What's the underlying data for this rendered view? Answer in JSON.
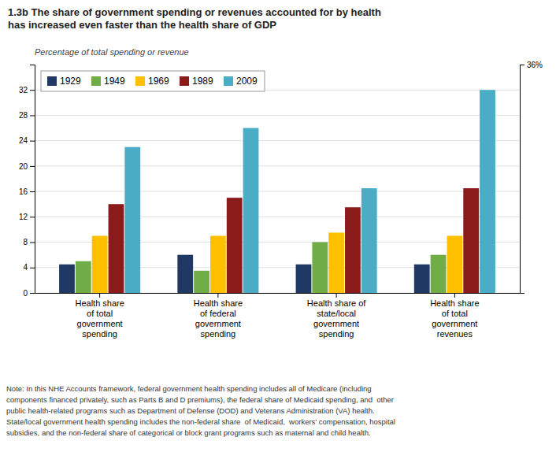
{
  "chart_data": {
    "type": "bar",
    "title": "1.3b The share of government spending or revenues accounted for by health\nhas increased even faster than the health share of GDP",
    "subtitle": "Percentage of total spending or revenue",
    "categories": [
      "Health share\nof total\ngovernment\nspending",
      "Health share\nof federal\ngovernment\nspending",
      "Health share of\nstate/local\ngovernment\nspending",
      "Health share\nof total\ngovernment\nrevenues"
    ],
    "series": [
      {
        "name": "1929",
        "color": "#1f3864",
        "values": [
          4.5,
          6.0,
          4.5,
          4.5
        ]
      },
      {
        "name": "1949",
        "color": "#70ad47",
        "values": [
          5.0,
          3.5,
          8.0,
          6.0
        ]
      },
      {
        "name": "1969",
        "color": "#ffc000",
        "values": [
          9.0,
          9.0,
          9.5,
          9.0
        ]
      },
      {
        "name": "1989",
        "color": "#8b1a1a",
        "values": [
          14.0,
          15.0,
          13.5,
          16.5
        ]
      },
      {
        "name": "2009",
        "color": "#4bacc6",
        "values": [
          23.0,
          26.0,
          16.5,
          32.0
        ]
      }
    ],
    "ylim": [
      0,
      36
    ],
    "yticks": [
      0,
      4,
      8,
      12,
      16,
      20,
      24,
      28,
      32
    ],
    "y2lim": [
      0,
      36
    ],
    "y2ticks": [
      {
        "value": 36,
        "label": "36%"
      }
    ],
    "grid": true,
    "legend": "upper left",
    "annotations": [
      "Note: In this NHE Accounts framework, federal government health spending includes all of Medicare (including\ncomponents financed privately, such as Parts B and D premiums), the federal share of Medicaid spending, and  other\npublic health-related programs such as Department of Defense (DOD) and Veterans Administration (VA) health.\nState/local government health spending includes the non-federal share  of Medicaid,  workers’ compensation, hospital\nsubsidies, and the non-federal share of categorical or block grant programs such as maternal and child health."
    ]
  }
}
